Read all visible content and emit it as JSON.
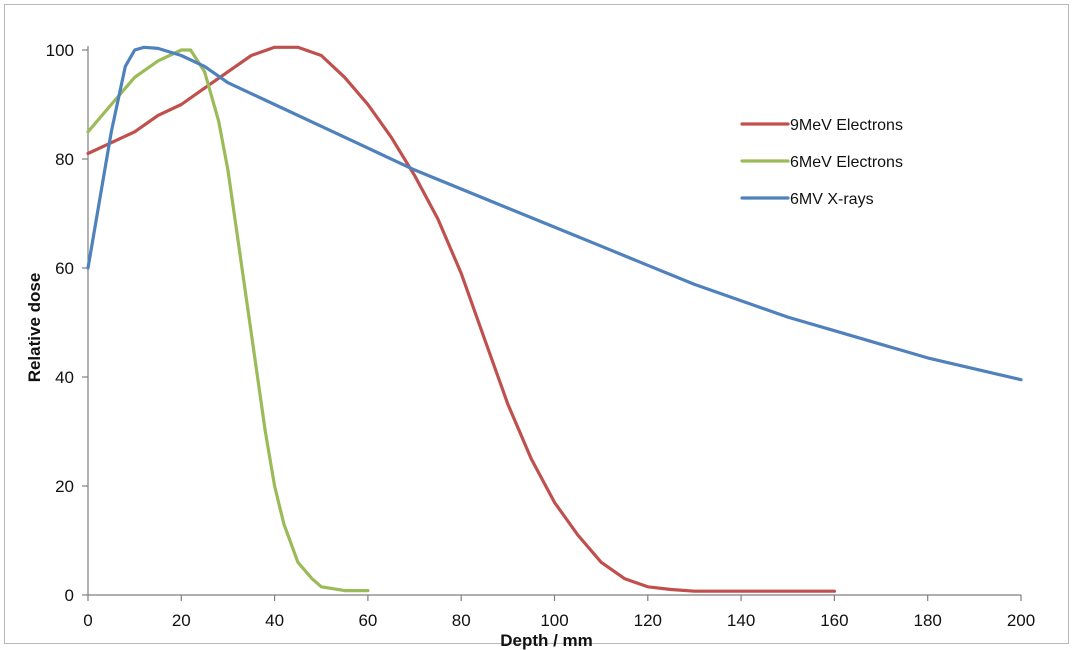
{
  "chart_data": {
    "type": "line",
    "xlabel": "Depth / mm",
    "ylabel": "Relative dose",
    "xlim": [
      0,
      200
    ],
    "ylim": [
      0,
      100
    ],
    "xticks": [
      0,
      20,
      40,
      60,
      80,
      100,
      120,
      140,
      160,
      180,
      200
    ],
    "yticks": [
      0,
      20,
      40,
      60,
      80,
      100
    ],
    "grid": false,
    "legend_position": "top-right",
    "series": [
      {
        "name": "9MeV Electrons",
        "color": "#c0504d",
        "x": [
          0,
          5,
          10,
          15,
          20,
          25,
          30,
          35,
          40,
          45,
          50,
          55,
          60,
          65,
          70,
          75,
          80,
          85,
          90,
          95,
          100,
          105,
          110,
          115,
          120,
          125,
          130,
          140,
          150,
          160
        ],
        "y": [
          81,
          83,
          85,
          88,
          90,
          93,
          96,
          99,
          100.5,
          100.5,
          99,
          95,
          90,
          84,
          77,
          69,
          59,
          47,
          35,
          25,
          17,
          11,
          6,
          3,
          1.5,
          1,
          0.7,
          0.7,
          0.7,
          0.7
        ]
      },
      {
        "name": "6MeV Electrons",
        "color": "#9bbb59",
        "x": [
          0,
          5,
          10,
          15,
          20,
          22,
          25,
          28,
          30,
          32,
          35,
          38,
          40,
          42,
          45,
          48,
          50,
          55,
          60
        ],
        "y": [
          85,
          90,
          95,
          98,
          100,
          100,
          96,
          87,
          78,
          66,
          48,
          30,
          20,
          13,
          6,
          3,
          1.5,
          0.8,
          0.8
        ]
      },
      {
        "name": "6MV X-rays",
        "color": "#4f81bd",
        "x": [
          0,
          5,
          8,
          10,
          12,
          15,
          20,
          25,
          30,
          40,
          50,
          60,
          70,
          80,
          90,
          100,
          110,
          120,
          130,
          140,
          150,
          160,
          170,
          180,
          190,
          200
        ],
        "y": [
          60,
          85,
          97,
          100,
          100.5,
          100.3,
          99,
          97,
          94,
          90,
          86,
          82,
          78,
          74.5,
          71,
          67.5,
          64,
          60.5,
          57,
          54,
          51,
          48.5,
          46,
          43.5,
          41.5,
          39.5
        ]
      }
    ]
  }
}
